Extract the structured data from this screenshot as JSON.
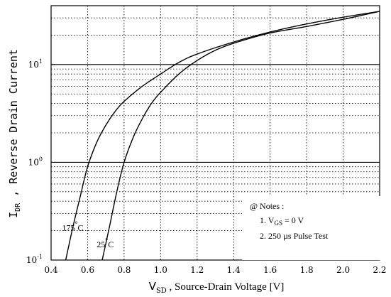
{
  "chart_data": {
    "type": "line",
    "x_axis": {
      "label_main": "V",
      "label_sub": "SD",
      "label_rest": " , Source-Drain Voltage  [V]",
      "range": [
        0.4,
        2.2
      ],
      "ticks": [
        "0.4",
        "0.6",
        "0.8",
        "1.0",
        "1.2",
        "1.4",
        "1.6",
        "1.8",
        "2.0",
        "2.2"
      ]
    },
    "y_axis": {
      "label_main": "I",
      "label_sub": "DR",
      "label_rest": " , Reverse Drain Current",
      "scale": "log",
      "range": [
        0.1,
        40
      ],
      "ticks": [
        {
          "base": "10",
          "exp": "-1",
          "value": 0.1
        },
        {
          "base": "10",
          "exp": "0",
          "value": 1
        },
        {
          "base": "10",
          "exp": "1",
          "value": 10
        }
      ]
    },
    "grid": true,
    "series": [
      {
        "name": "175 °C",
        "x": [
          0.48,
          0.52,
          0.56,
          0.6,
          0.65,
          0.7,
          0.75,
          0.8,
          0.9,
          1.0,
          1.1,
          1.2,
          1.4,
          1.6,
          1.8,
          2.0,
          2.2
        ],
        "y": [
          0.1,
          0.22,
          0.45,
          0.9,
          1.6,
          2.4,
          3.3,
          4.2,
          6.0,
          8.0,
          10.5,
          12.8,
          17.0,
          21.5,
          26.0,
          30.5,
          35.0
        ]
      },
      {
        "name": "25 °C",
        "x": [
          0.68,
          0.72,
          0.76,
          0.8,
          0.85,
          0.9,
          0.95,
          1.0,
          1.1,
          1.2,
          1.3,
          1.4,
          1.6,
          1.8,
          2.0,
          2.2
        ],
        "y": [
          0.1,
          0.22,
          0.5,
          1.0,
          1.8,
          2.8,
          4.0,
          5.2,
          8.0,
          11.0,
          14.0,
          16.5,
          21.0,
          24.5,
          29.0,
          35.0
        ]
      }
    ],
    "series_labels": [
      {
        "text": "175",
        "sup": "°",
        "unit": "C",
        "x": 0.46,
        "y": 0.2
      },
      {
        "text": "25",
        "sup": "°",
        "unit": "C",
        "x": 0.65,
        "y": 0.135
      }
    ],
    "notes": {
      "title": "@ Notes :",
      "line1_main": "1. V",
      "line1_sub": "GS",
      "line1_rest": " = 0 V",
      "line2": "2. 250 µs Pulse Test"
    }
  }
}
